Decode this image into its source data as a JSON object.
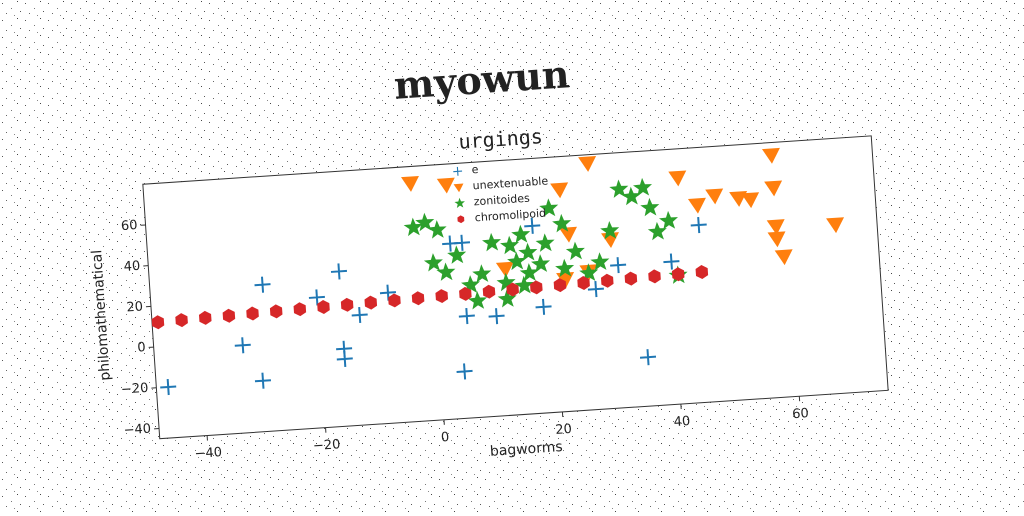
{
  "chart_data": {
    "type": "scatter",
    "title": "myowun",
    "subtitle": "urgings",
    "x_label": "bagworms",
    "y_label": "philomathematical",
    "xlim": [
      -48,
      75
    ],
    "ylim": [
      -45,
      80
    ],
    "xticks": [
      {
        "value": -40,
        "label": "−40"
      },
      {
        "value": -20,
        "label": "−20"
      },
      0,
      20,
      40,
      60
    ],
    "yticks": [
      {
        "value": -40,
        "label": "−40"
      },
      {
        "value": -20,
        "label": "−20"
      },
      0,
      20,
      40,
      60
    ],
    "legend": "upper center",
    "series": [
      {
        "name": "e",
        "color": "#1f77b4",
        "marker": "plus",
        "x": [
          -46,
          -30,
          -29,
          -33,
          -20,
          -16,
          -16,
          -16,
          -13,
          -8,
          3,
          5,
          5,
          4,
          10,
          17,
          18,
          27,
          31,
          35,
          40,
          45
        ],
        "y": [
          -20,
          -20,
          27,
          -2,
          19,
          -7,
          -12,
          31,
          9,
          19,
          41,
          41,
          5,
          -22,
          4,
          47,
          7,
          14,
          25,
          -21,
          25,
          42
        ]
      },
      {
        "name": "unextenuable",
        "color": "#ff7f0e",
        "marker": "triangle",
        "x": [
          -3,
          3,
          27,
          22,
          23,
          30,
          12,
          42,
          45,
          48,
          52,
          54,
          58,
          58,
          58,
          59,
          68,
          22,
          26,
          58
        ],
        "y": [
          72,
          70,
          76,
          64,
          42,
          38,
          27,
          66,
          52,
          56,
          54,
          53,
          58,
          39,
          33,
          24,
          38,
          20,
          23,
          74
        ]
      },
      {
        "name": "zonitoides",
        "color": "#2ca02c",
        "marker": "star",
        "x": [
          -3,
          -1,
          1,
          2,
          4,
          6,
          8,
          10,
          12,
          13,
          14,
          15,
          16,
          16,
          18,
          19,
          20,
          22,
          22,
          24,
          26,
          28,
          30,
          32,
          34,
          36,
          37,
          38,
          40,
          41,
          12,
          15,
          0,
          7
        ],
        "y": [
          50,
          52,
          48,
          27,
          35,
          20,
          25,
          40,
          12,
          38,
          30,
          43,
          34,
          24,
          28,
          38,
          55,
          47,
          25,
          33,
          22,
          27,
          42,
          62,
          58,
          62,
          52,
          40,
          45,
          18,
          20,
          18,
          32,
          12
        ]
      },
      {
        "name": "chromolipoid",
        "color": "#d62728",
        "marker": "hexagon",
        "x": [
          -47,
          -43,
          -39,
          -35,
          -31,
          -27,
          -23,
          -19,
          -15,
          -11,
          -7,
          -3,
          1,
          5,
          9,
          13,
          17,
          21,
          25,
          29,
          33,
          37,
          41,
          45
        ],
        "y": [
          12.0,
          12.3,
          12.6,
          12.9,
          13.2,
          13.5,
          13.8,
          14.1,
          14.4,
          14.7,
          15.0,
          15.3,
          15.6,
          15.9,
          16.2,
          16.5,
          16.8,
          17.1,
          17.4,
          17.7,
          18.0,
          18.3,
          18.6,
          18.9
        ]
      }
    ]
  }
}
